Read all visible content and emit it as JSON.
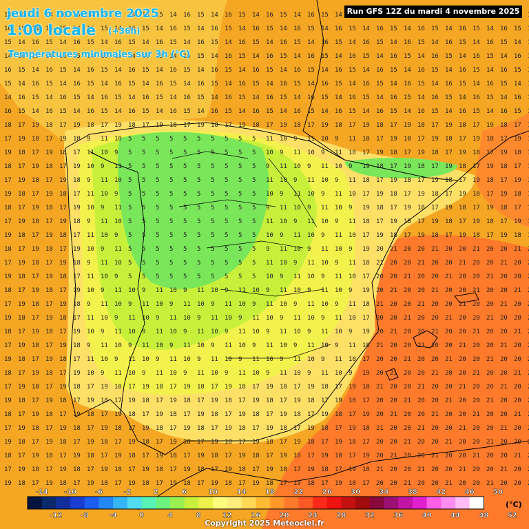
{
  "header": {
    "date": "jeudi 6 novembre 2025",
    "time": "1:00 locale",
    "offset": "(+36h)",
    "subtitle": "Températures minimales sur 3h (°C)"
  },
  "run_label": "Run GFS 12Z du mardi 4 novembre 2025",
  "copyright": "Copyright 2025 Meteociel.fr",
  "legend": {
    "unit": "(°C)",
    "top_labels": [
      "-14",
      "-10",
      "-6",
      "-2",
      "2",
      "6",
      "10",
      "14",
      "18",
      "22",
      "26",
      "30",
      "34",
      "38",
      "42",
      "46",
      "50"
    ],
    "bottom_labels": [
      "-12",
      "-8",
      "-4",
      "0",
      "4",
      "8",
      "12",
      "16",
      "20",
      "24",
      "28",
      "32",
      "36",
      "40",
      "44",
      "48",
      "52"
    ],
    "colors": [
      "#05133f",
      "#0a2a6b",
      "#122f9e",
      "#1a3fd0",
      "#1d5ef0",
      "#2389f5",
      "#35b7f5",
      "#52dcef",
      "#57f2b8",
      "#6df27d",
      "#9af050",
      "#c8f03b",
      "#eef04c",
      "#ffff7e",
      "#ffee7e",
      "#ffd955",
      "#ffbb33",
      "#ff9a2a",
      "#ff7a2a",
      "#ff5a26",
      "#ff2a1a",
      "#ee1212",
      "#c51010",
      "#a20c0c",
      "#88093c",
      "#9c0f74",
      "#c214a4",
      "#e020cf",
      "#ff5ee6",
      "#ff8df0",
      "#ffbcf6",
      "#ffffff"
    ]
  },
  "map": {
    "colors": {
      "sea": "#f5a623",
      "warm_orange": "#ff7a2a",
      "pale_yellow": "#ffe067",
      "yellow": "#f3f24c",
      "light_green": "#c8f03b",
      "green": "#7ae65a",
      "border": "#000000"
    }
  }
}
